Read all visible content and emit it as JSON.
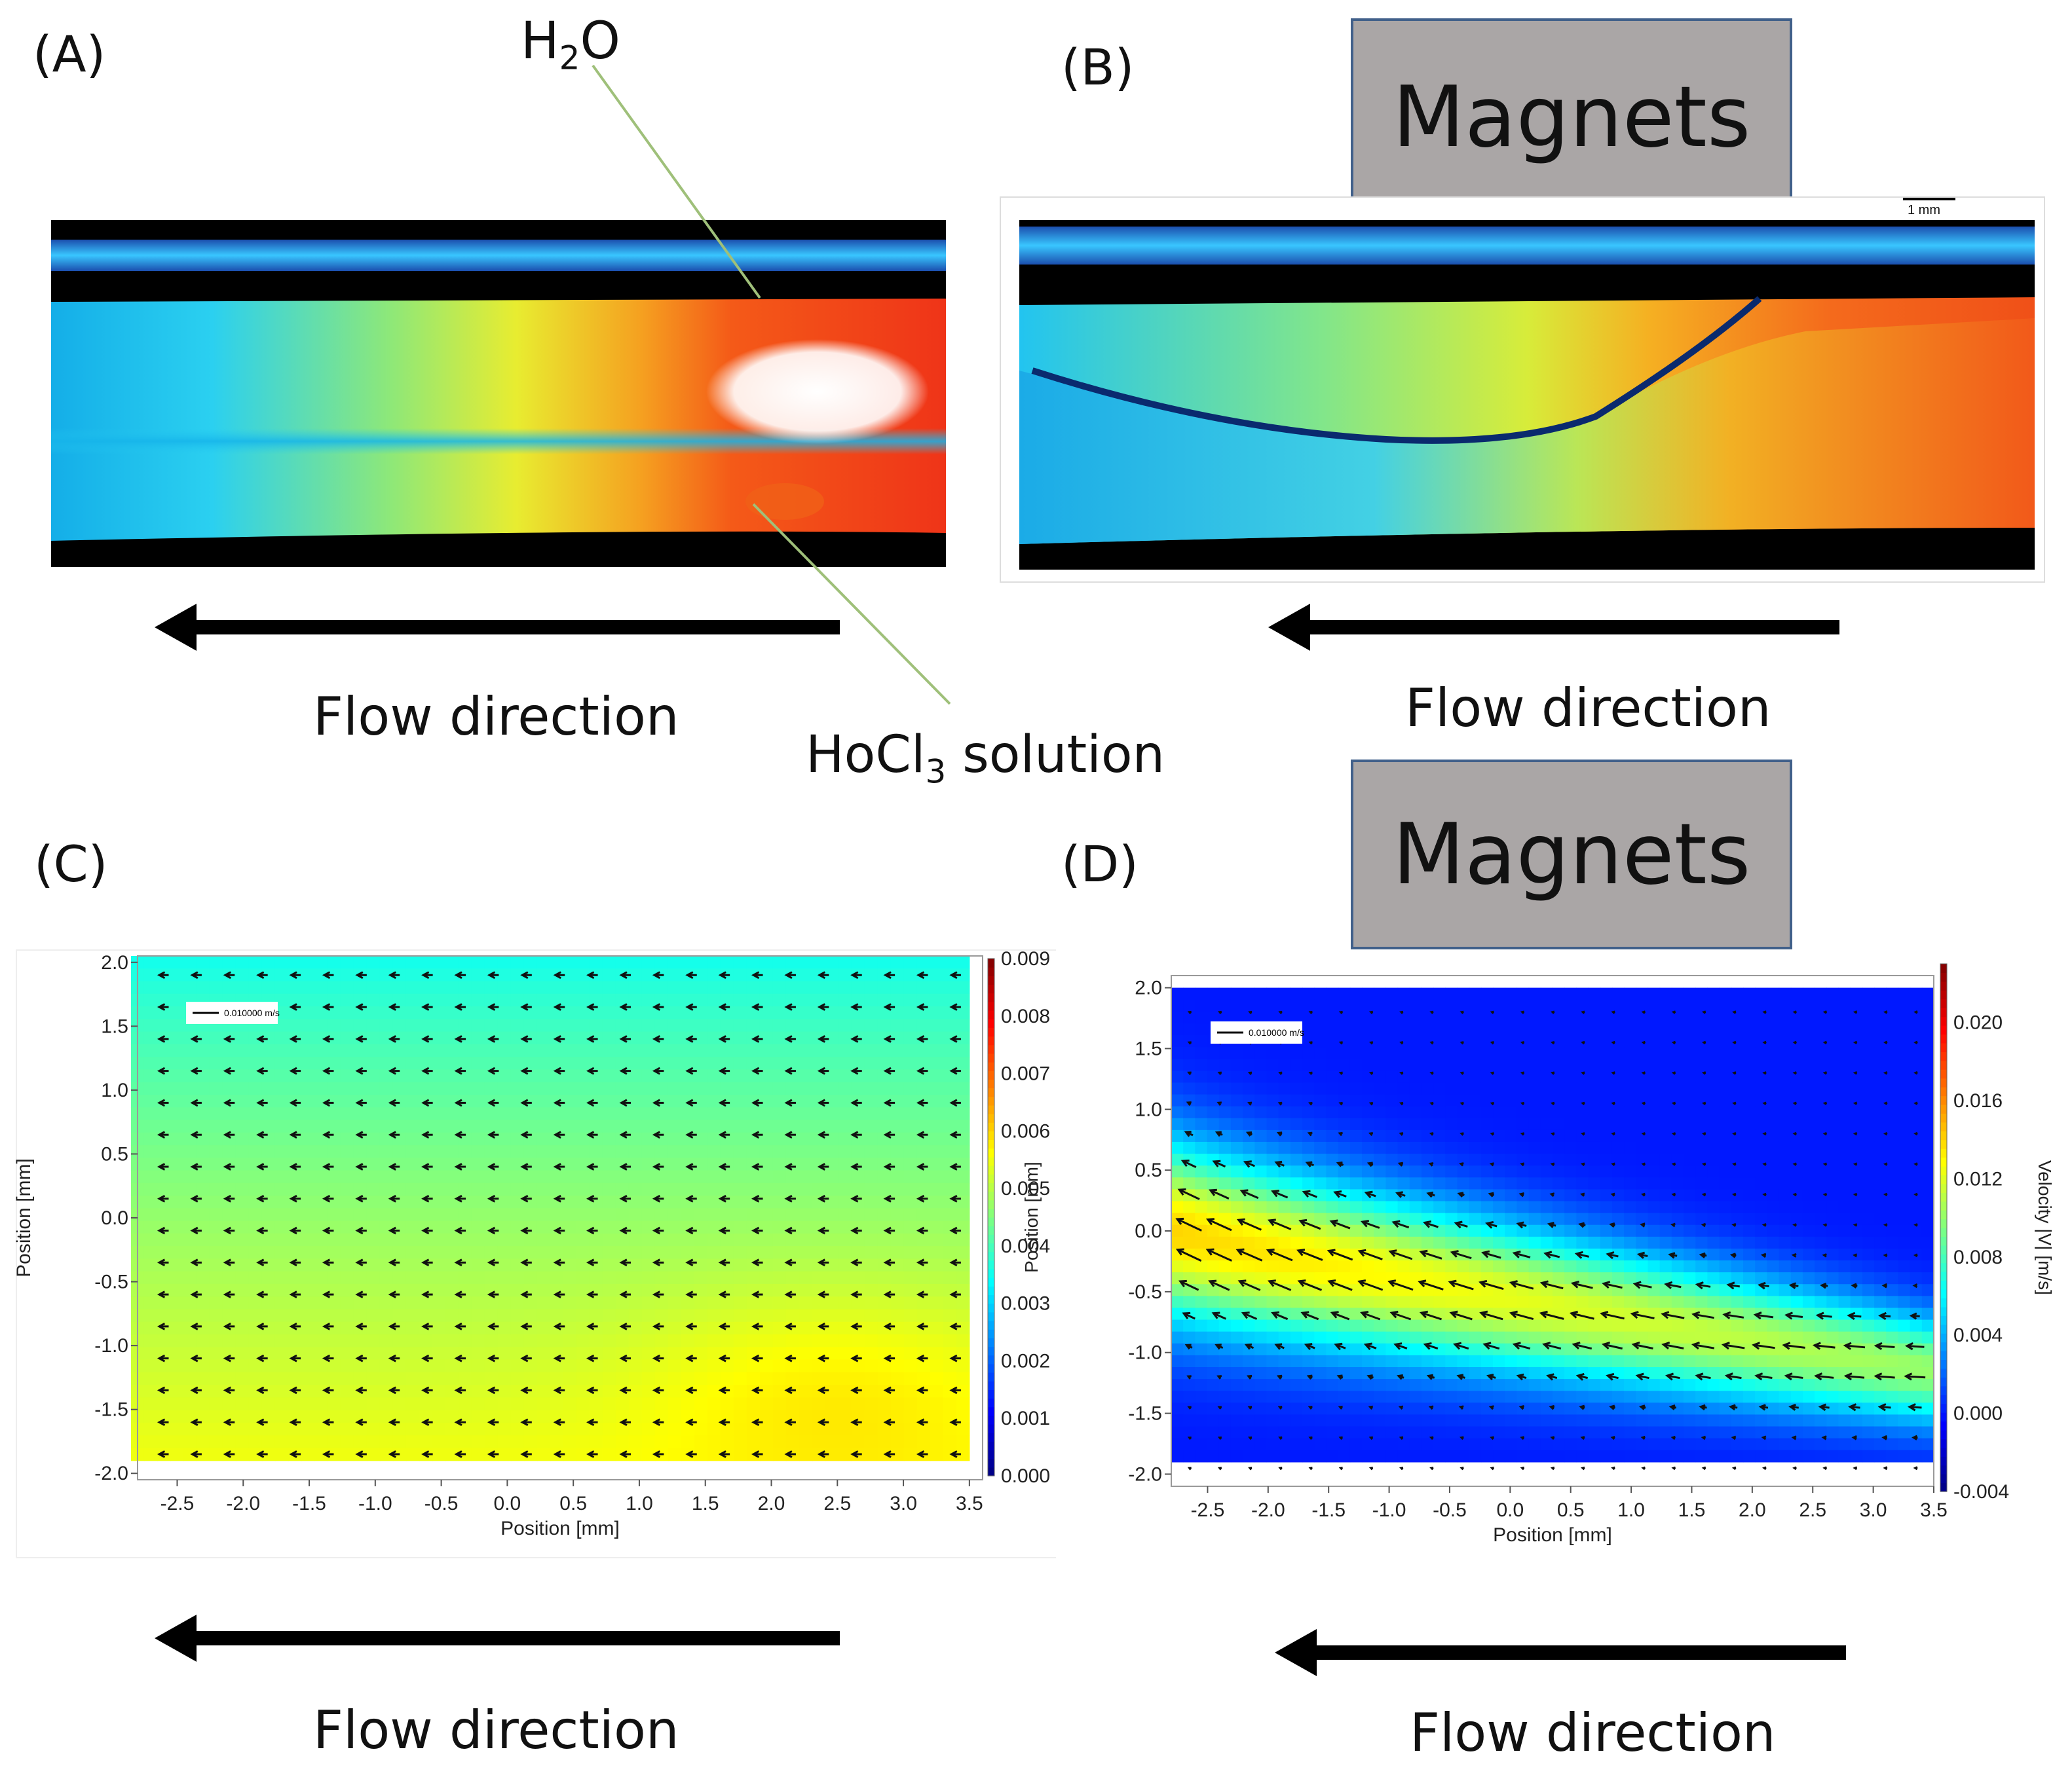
{
  "panel_labels": {
    "a": "(A)",
    "b": "(B)",
    "c": "(C)",
    "d": "(D)"
  },
  "annotations": {
    "water_prefix": "H",
    "water_sub": "2",
    "water_suffix": "O",
    "hocl_prefix": "HoCl",
    "hocl_sub": "3",
    "hocl_suffix": " solution"
  },
  "magnets_label": "Magnets",
  "flow_direction_label": "Flow direction",
  "scale_bar_label": "1 mm",
  "colors": {
    "arrow": "#000000",
    "magnet_fill": "#aaa6a6",
    "magnet_border": "#41608a",
    "annotation_line": "#9fc07a",
    "colormap": [
      "#00007f",
      "#0000ff",
      "#0080ff",
      "#00ffff",
      "#80ff80",
      "#ffff00",
      "#ff8000",
      "#ff0000",
      "#7f0000"
    ]
  },
  "chart_data": [
    {
      "panel": "C",
      "type": "heatmap",
      "xlabel": "Position [mm]",
      "ylabel": "Position [mm]",
      "colorbar_ylabel": "Position [mm]",
      "xlim": [
        -2.8,
        3.6
      ],
      "ylim": [
        -2.05,
        2.05
      ],
      "xticks": [
        -2.5,
        -2.0,
        -1.5,
        -1.0,
        -0.5,
        0.0,
        0.5,
        1.0,
        1.5,
        2.0,
        2.5,
        3.0,
        3.5
      ],
      "xtick_labels": [
        "-2.5",
        "-2.0",
        "-1.5",
        "-1.0",
        "-0.5",
        "0.0",
        "0.5",
        "1.0",
        "1.5",
        "2.0",
        "2.5",
        "3.0",
        "3.5"
      ],
      "yticks": [
        2.0,
        1.5,
        1.0,
        0.5,
        0.0,
        -0.5,
        -1.0,
        -1.5,
        -2.0
      ],
      "ytick_labels": [
        "2.0",
        "1.5",
        "1.0",
        "0.5",
        "0.0",
        "-0.5",
        "-1.0",
        "-1.5",
        "-2.0"
      ],
      "colorbar_range": [
        0.0,
        0.009
      ],
      "colorbar_ticks": [
        0.009,
        0.008,
        0.007,
        0.006,
        0.005,
        0.004,
        0.003,
        0.002,
        0.001,
        0.0
      ],
      "colorbar_tick_labels": [
        "0.009",
        "0.008",
        "0.007",
        "0.006",
        "0.005",
        "0.004",
        "0.003",
        "0.002",
        "0.001",
        "0.000"
      ],
      "vector_legend": "0.010000 m/s",
      "field_x_range": [
        -2.85,
        3.5
      ],
      "field_y_range": [
        -1.9,
        2.05
      ],
      "field_description_values": {
        "top_velocity": 0.0035,
        "bottom_velocity": 0.0055,
        "max_velocity_near": [
          2.5,
          -1.3
        ],
        "max_velocity": 0.006
      },
      "arrow_rows_y": [
        1.9,
        1.65,
        1.4,
        1.15,
        0.9,
        0.65,
        0.4,
        0.15,
        -0.1,
        -0.35,
        -0.6,
        -0.85,
        -1.1,
        -1.35,
        -1.6,
        -1.85
      ],
      "arrow_cols_x": [
        -2.6,
        -2.35,
        -2.1,
        -1.85,
        -1.6,
        -1.35,
        -1.1,
        -0.85,
        -0.6,
        -0.35,
        -0.1,
        0.15,
        0.4,
        0.65,
        0.9,
        1.15,
        1.4,
        1.65,
        1.9,
        2.15,
        2.4,
        2.65,
        2.9,
        3.15,
        3.4
      ],
      "arrow_speed": 0.0045,
      "arrow_direction": "left"
    },
    {
      "panel": "D",
      "type": "heatmap",
      "xlabel": "Position [mm]",
      "ylabel": "",
      "colorbar_ylabel": "Velocity |V| [m/s]",
      "xlim": [
        -2.8,
        3.5
      ],
      "ylim": [
        -2.1,
        2.1
      ],
      "xticks": [
        -2.5,
        -2.0,
        -1.5,
        -1.0,
        -0.5,
        0.0,
        0.5,
        1.0,
        1.5,
        2.0,
        2.5,
        3.0,
        3.5
      ],
      "xtick_labels": [
        "-2.5",
        "-2.0",
        "-1.5",
        "-1.0",
        "-0.5",
        "0.0",
        "0.5",
        "1.0",
        "1.5",
        "2.0",
        "2.5",
        "3.0",
        "3.5"
      ],
      "yticks": [
        2.0,
        1.5,
        1.0,
        0.5,
        0.0,
        -0.5,
        -1.0,
        -1.5,
        -2.0
      ],
      "ytick_labels": [
        "2.0",
        "1.5",
        "1.0",
        "0.5",
        "0.0",
        "-0.5",
        "-1.0",
        "-1.5",
        "-2.0"
      ],
      "colorbar_range": [
        -0.004,
        0.023
      ],
      "colorbar_ticks": [
        0.02,
        0.016,
        0.012,
        0.008,
        0.004,
        0.0,
        -0.004
      ],
      "colorbar_tick_labels": [
        "0.020",
        "0.016",
        "0.012",
        "0.008",
        "0.004",
        "0.000",
        "-0.004"
      ],
      "vector_legend": "0.010000 m/s",
      "jet": {
        "center_y_at_left": 0.0,
        "center_y_at_right": -1.15,
        "peak_velocity": 0.014,
        "background_velocity": 0.0
      },
      "arrow_rows_y": [
        1.8,
        1.55,
        1.3,
        1.05,
        0.8,
        0.55,
        0.3,
        0.05,
        -0.2,
        -0.45,
        -0.7,
        -0.95,
        -1.2,
        -1.45,
        -1.7,
        -1.95
      ],
      "arrow_cols_x": [
        -2.65,
        -2.4,
        -2.15,
        -1.9,
        -1.65,
        -1.4,
        -1.15,
        -0.9,
        -0.65,
        -0.4,
        -0.15,
        0.1,
        0.35,
        0.6,
        0.85,
        1.1,
        1.35,
        1.6,
        1.85,
        2.1,
        2.35,
        2.6,
        2.85,
        3.1,
        3.35
      ]
    }
  ]
}
